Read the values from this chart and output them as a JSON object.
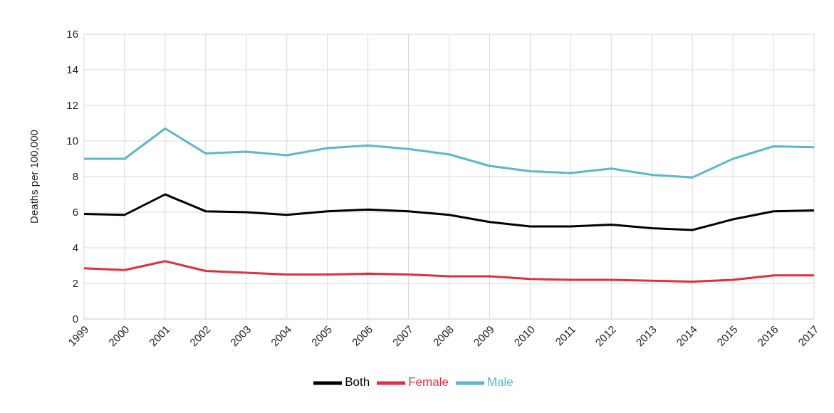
{
  "chart_data": {
    "type": "line",
    "ylabel": "Deaths per 100,000",
    "categories": [
      "1999",
      "2000",
      "2001",
      "2002",
      "2003",
      "2004",
      "2005",
      "2006",
      "2007",
      "2008",
      "2009",
      "2010",
      "2011",
      "2012",
      "2013",
      "2014",
      "2015",
      "2016",
      "2017"
    ],
    "series": [
      {
        "name": "Both",
        "color": "#000000",
        "values": [
          5.9,
          5.85,
          7.0,
          6.05,
          6.0,
          5.85,
          6.05,
          6.15,
          6.05,
          5.85,
          5.45,
          5.2,
          5.2,
          5.3,
          5.1,
          5.0,
          5.6,
          6.05,
          6.1
        ]
      },
      {
        "name": "Female",
        "color": "#e0303f",
        "values": [
          2.85,
          2.75,
          3.25,
          2.7,
          2.6,
          2.5,
          2.5,
          2.55,
          2.5,
          2.4,
          2.4,
          2.25,
          2.2,
          2.2,
          2.15,
          2.1,
          2.2,
          2.45,
          2.45
        ]
      },
      {
        "name": "Male",
        "color": "#5bb8c9",
        "values": [
          9.0,
          9.0,
          10.7,
          9.3,
          9.4,
          9.2,
          9.6,
          9.75,
          9.55,
          9.25,
          8.6,
          8.3,
          8.2,
          8.45,
          8.1,
          7.95,
          9.0,
          9.7,
          9.65
        ]
      }
    ],
    "ylim": [
      0,
      16
    ],
    "yticks": [
      0,
      2,
      4,
      6,
      8,
      10,
      12,
      14,
      16
    ],
    "grid": true,
    "legend": "bottom",
    "marker": "none",
    "line_style": "solid"
  }
}
